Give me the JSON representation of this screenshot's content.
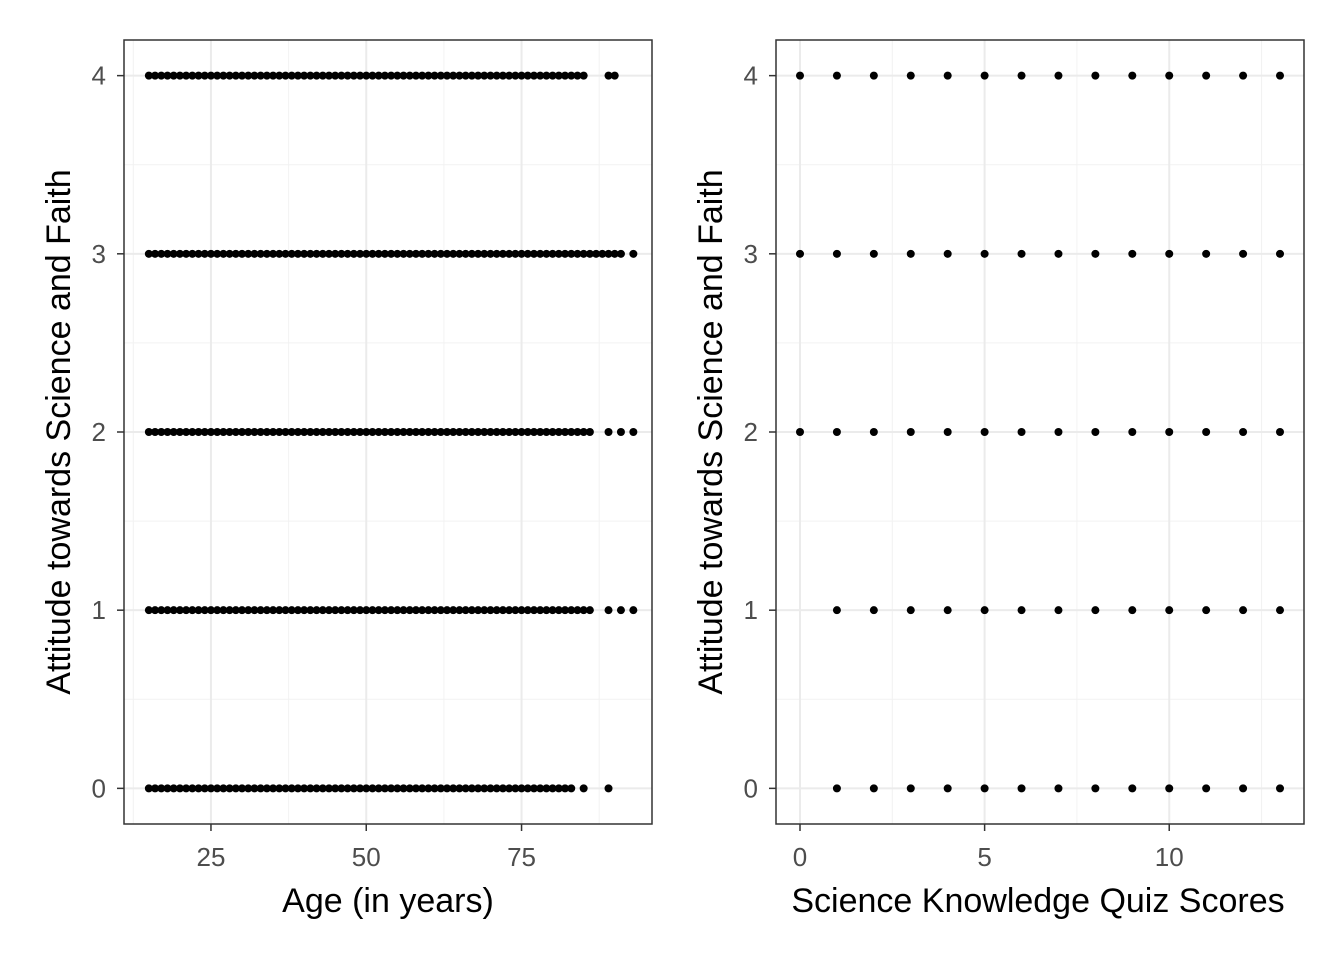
{
  "chart_data": [
    {
      "type": "scatter",
      "title": "",
      "xlabel": "Age (in years)",
      "ylabel": "Attitude towards Science and Faith",
      "xlim": [
        11,
        96
      ],
      "ylim": [
        -0.2,
        4.2
      ],
      "x_ticks": [
        25,
        50,
        75
      ],
      "y_ticks": [
        0,
        1,
        2,
        3,
        4
      ],
      "grid": true,
      "legend": "none",
      "series": [
        {
          "y": 4,
          "x_range": [
            15,
            85
          ],
          "x_extra": [
            89,
            90
          ]
        },
        {
          "y": 3,
          "x_range": [
            15,
            90
          ],
          "x_extra": [
            91,
            93
          ]
        },
        {
          "y": 2,
          "x_range": [
            15,
            86
          ],
          "x_extra": [
            89,
            91,
            93
          ]
        },
        {
          "y": 1,
          "x_range": [
            15,
            86
          ],
          "x_extra": [
            89,
            91,
            93
          ]
        },
        {
          "y": 0,
          "x_range": [
            15,
            83
          ],
          "x_extra": [
            85,
            89
          ]
        }
      ]
    },
    {
      "type": "scatter",
      "title": "",
      "xlabel": "Science Knowledge Quiz Scores",
      "ylabel": "Attitude towards Science and Faith",
      "xlim": [
        -0.65,
        13.65
      ],
      "ylim": [
        -0.2,
        4.2
      ],
      "x_ticks": [
        0,
        5,
        10
      ],
      "y_ticks": [
        0,
        1,
        2,
        3,
        4
      ],
      "grid": true,
      "legend": "none",
      "series": [
        {
          "y": 4,
          "x_range": [
            0,
            13
          ],
          "x_extra": []
        },
        {
          "y": 3,
          "x_range": [
            0,
            13
          ],
          "x_extra": []
        },
        {
          "y": 2,
          "x_range": [
            0,
            13
          ],
          "x_extra": []
        },
        {
          "y": 1,
          "x_range": [
            1,
            13
          ],
          "x_extra": []
        },
        {
          "y": 0,
          "x_range": [
            1,
            13
          ],
          "x_extra": []
        }
      ]
    }
  ]
}
